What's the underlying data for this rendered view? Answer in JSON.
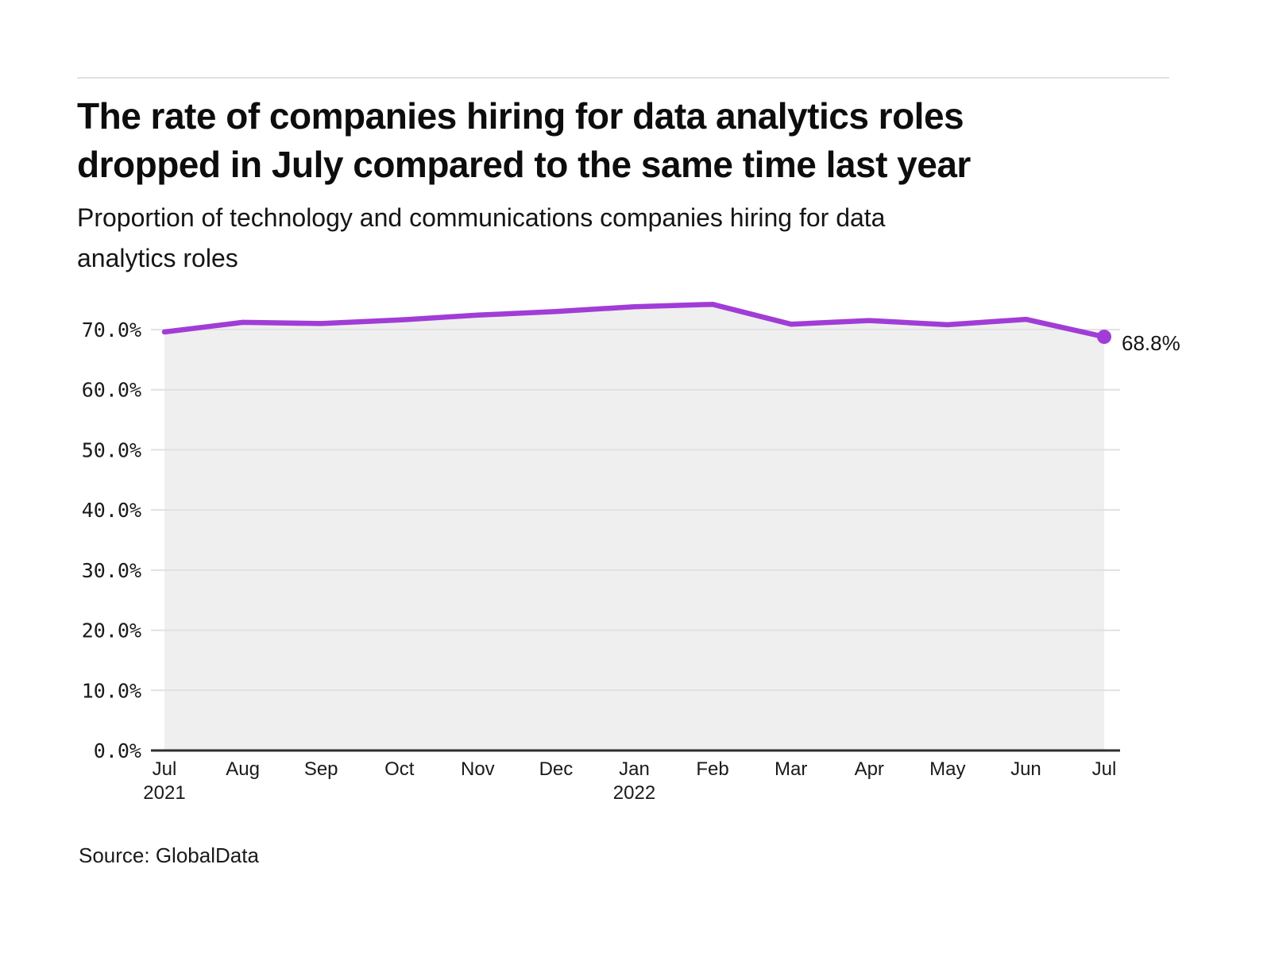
{
  "page": {
    "title_lines": [
      "The rate of companies hiring for data analytics roles",
      "dropped in July compared to the same time last year"
    ],
    "subtitle_lines": [
      "Proportion of technology and communications companies hiring for data",
      "analytics roles"
    ],
    "source": "Source: GlobalData"
  },
  "chart_data": {
    "type": "line",
    "title": "The rate of companies hiring for data analytics roles dropped in July compared to the same time last year",
    "subtitle": "Proportion of technology and communications companies hiring for data analytics roles",
    "x": [
      "Jul 2021",
      "Aug 2021",
      "Sep 2021",
      "Oct 2021",
      "Nov 2021",
      "Dec 2021",
      "Jan 2022",
      "Feb 2022",
      "Mar 2022",
      "Apr 2022",
      "May 2022",
      "Jun 2022",
      "Jul 2022"
    ],
    "x_ticks": [
      {
        "month": "Jul",
        "year": "2021"
      },
      {
        "month": "Aug"
      },
      {
        "month": "Sep"
      },
      {
        "month": "Oct"
      },
      {
        "month": "Nov"
      },
      {
        "month": "Dec"
      },
      {
        "month": "Jan",
        "year": "2022"
      },
      {
        "month": "Feb"
      },
      {
        "month": "Mar"
      },
      {
        "month": "Apr"
      },
      {
        "month": "May"
      },
      {
        "month": "Jun"
      },
      {
        "month": "Jul"
      }
    ],
    "series": [
      {
        "name": "Proportion of companies hiring for data analytics roles",
        "values": [
          69.6,
          71.2,
          71.0,
          71.6,
          72.4,
          73.0,
          73.8,
          74.2,
          70.9,
          71.5,
          70.8,
          71.7,
          68.8
        ]
      }
    ],
    "end_label": "68.8%",
    "y_ticks": [
      0,
      10,
      20,
      30,
      40,
      50,
      60,
      70
    ],
    "y_tick_labels": [
      "0.0%",
      "10.0%",
      "20.0%",
      "30.0%",
      "40.0%",
      "50.0%",
      "60.0%",
      "70.0%"
    ],
    "ylim": [
      0,
      77
    ],
    "grid": "horizontal",
    "legend": "none",
    "colors": {
      "line": "#a13dd6",
      "marker": "#a13dd6",
      "area_fill": "#efefef",
      "gridline": "#e1e1e1",
      "axis": "#2d2d2d",
      "text": "#1a1a1a"
    }
  }
}
